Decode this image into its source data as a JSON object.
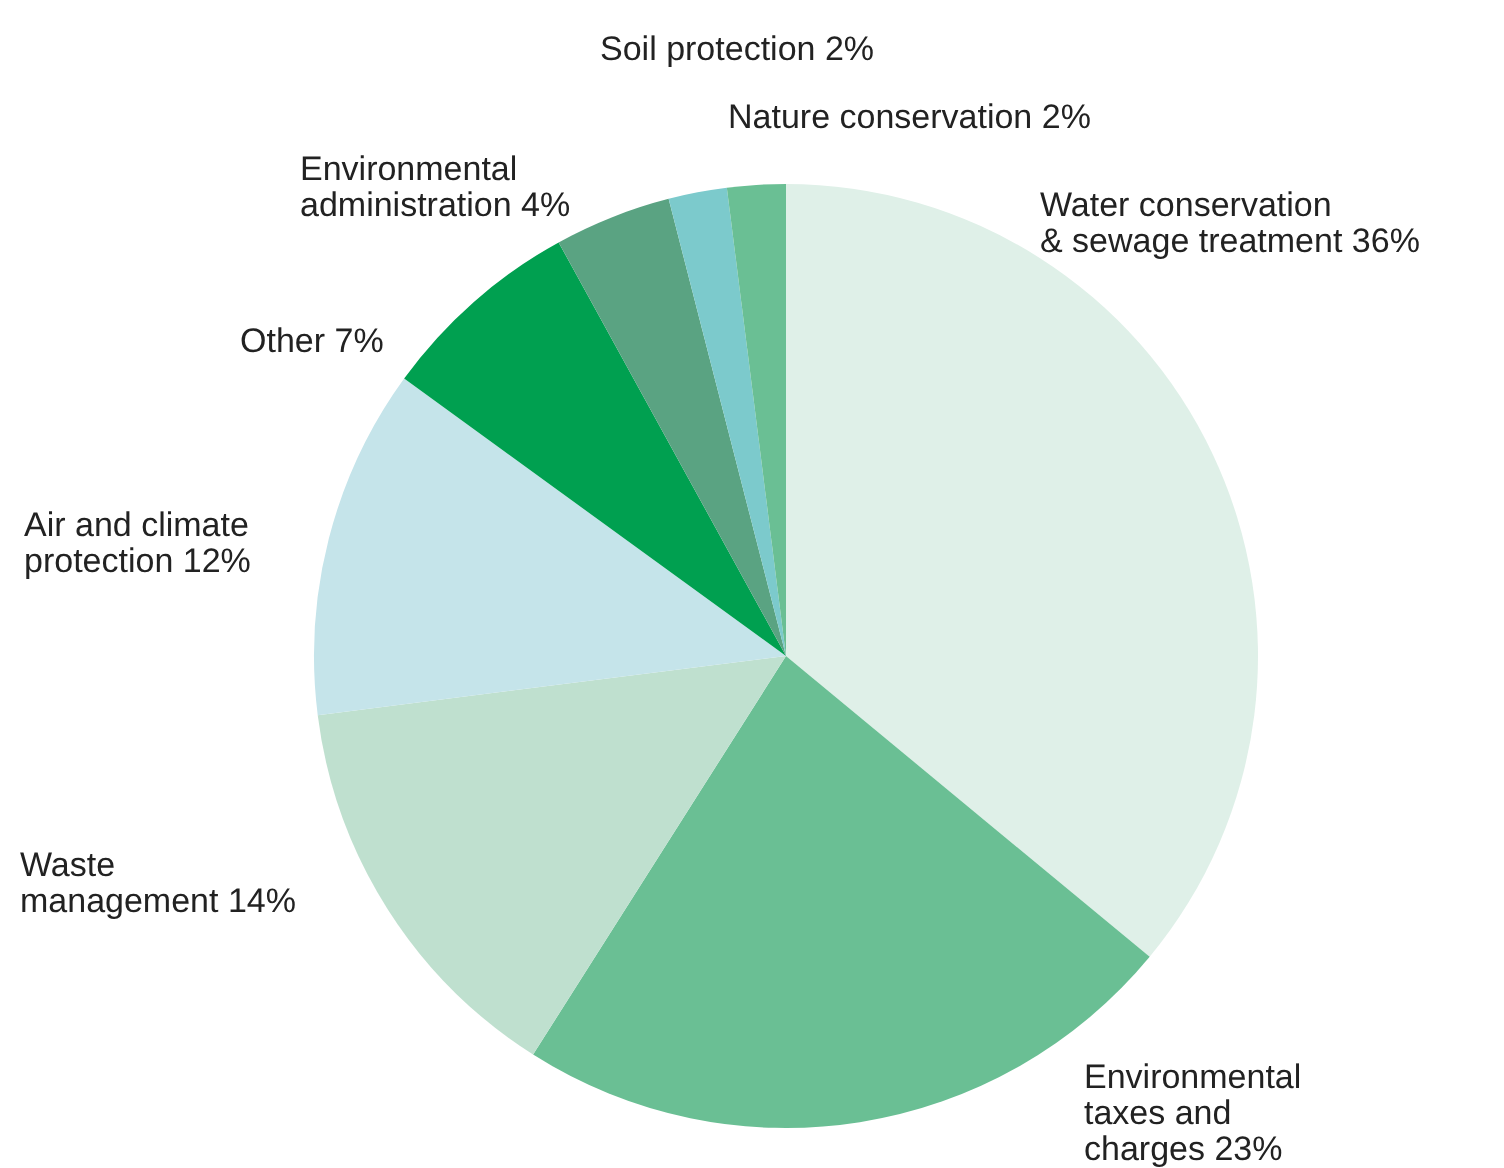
{
  "chart_data": {
    "type": "pie",
    "categories": [
      "Water conservation & sewage treatment",
      "Environmental taxes and charges",
      "Waste management",
      "Air and climate protection",
      "Other",
      "Environmental administration",
      "Soil protection",
      "Nature conservation"
    ],
    "values": [
      36,
      23,
      14,
      12,
      7,
      4,
      2,
      2
    ],
    "value_labels": [
      "36%",
      "23%",
      "14%",
      "12%",
      "7%",
      "4%",
      "2%",
      "2%"
    ],
    "colors": [
      "#dff0e8",
      "#6abf94",
      "#bfe0cf",
      "#c5e4ea",
      "#00a050",
      "#5aa382",
      "#7ccacc",
      "#6abf94"
    ],
    "legend": false
  }
}
